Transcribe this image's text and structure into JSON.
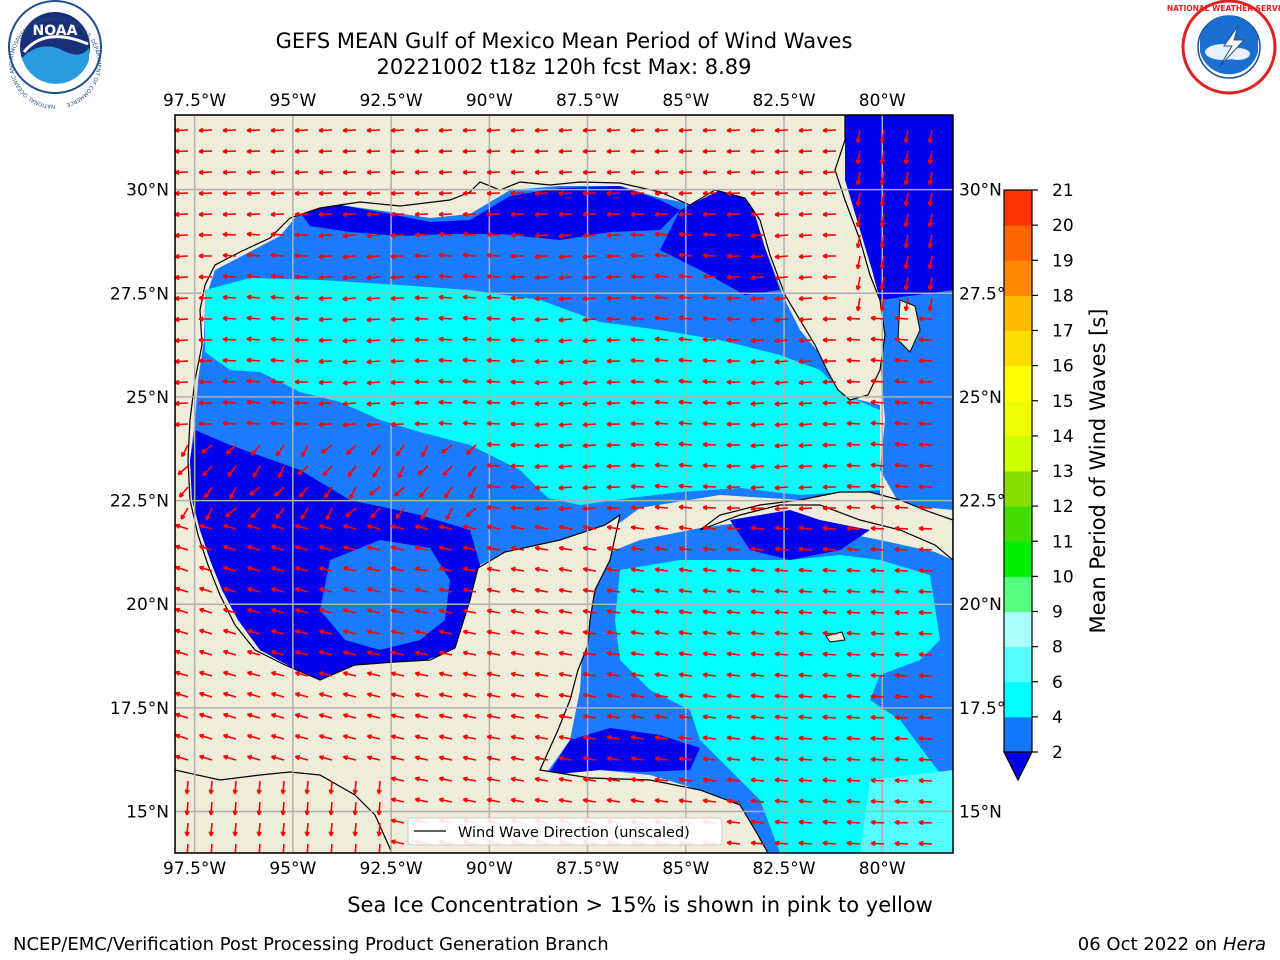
{
  "header": {
    "title_line1": "GEFS MEAN Gulf of Mexico Mean Period of Wind Waves",
    "title_line2": "20221002 t18z 120h fcst   Max: 8.89"
  },
  "logos": {
    "left": {
      "text": "NOAA",
      "ring_text": "NATIONAL OCEANIC AND ATMOSPHERIC ADMINISTRATION · U.S. DEPARTMENT OF COMMERCE"
    },
    "right": {
      "text": "NATIONAL WEATHER SERVICE"
    }
  },
  "map": {
    "lon_ticks": [
      "97.5°W",
      "95°W",
      "92.5°W",
      "90°W",
      "87.5°W",
      "85°W",
      "82.5°W",
      "80°W"
    ],
    "lat_ticks": [
      "30°N",
      "27.5°N",
      "25°N",
      "22.5°N",
      "20°N",
      "17.5°N",
      "15°N"
    ],
    "lon_range": [
      -98,
      -78.2
    ],
    "lat_range": [
      14,
      31.8
    ],
    "legend_label": "Wind Wave Direction (unscaled)",
    "colors": {
      "land": "#efedd9",
      "coast": "#000000",
      "arrow": "#ff0000",
      "grid": "#b0b0b0",
      "band_2_4": "#0000ee",
      "band_4_6": "#1b7bff",
      "band_6_8": "#00ffff",
      "band_8_9": "#55ffff"
    }
  },
  "colorbar": {
    "label": "Mean Period of Wind Waves [s]",
    "levels": [
      2,
      4,
      6,
      8,
      9,
      10,
      11,
      12,
      13,
      14,
      15,
      16,
      17,
      18,
      19,
      20,
      21
    ],
    "colors": [
      "#1478ff",
      "#00ffff",
      "#55ffff",
      "#aaffff",
      "#55ff80",
      "#00ee00",
      "#44dd00",
      "#88dd00",
      "#ccff00",
      "#eeff00",
      "#ffff00",
      "#ffdd00",
      "#ffbb00",
      "#ff8800",
      "#ff6600",
      "#ff3300"
    ],
    "extend_color": "#0000ee"
  },
  "note": "Sea Ice Concentration > 15% is shown in pink to yellow",
  "footer": {
    "left": "NCEP/EMC/Verification Post Processing Product Generation Branch",
    "right_prefix": "06 Oct 2022 on ",
    "right_host": "Hera"
  }
}
